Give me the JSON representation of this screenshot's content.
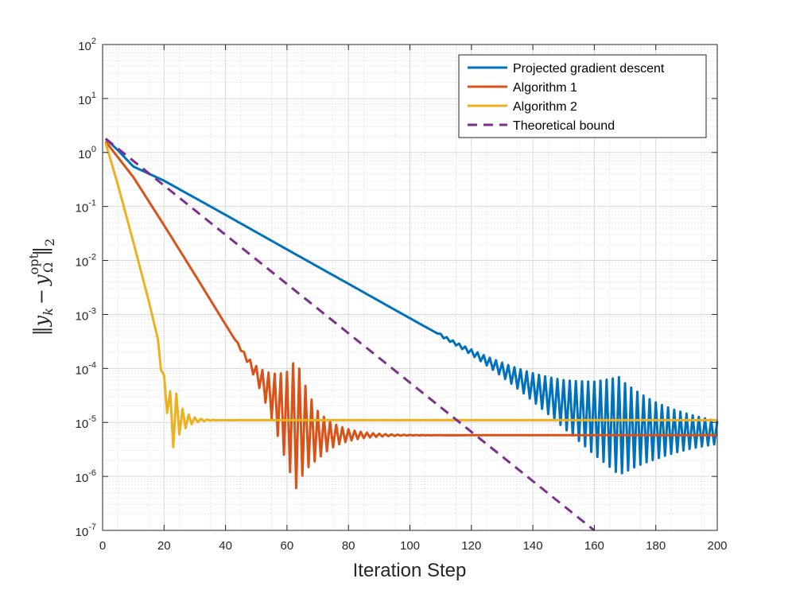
{
  "chart_data": {
    "type": "line",
    "xlabel": "Iteration Step",
    "ylabel": "||y_k − y_Ω^opt||_2",
    "ylabel_parts": {
      "main": "y",
      "sub_k": "k",
      "minus": "−",
      "sup": "opt",
      "sub_omega": "Ω",
      "norm_sub": "2"
    },
    "yscale": "log",
    "xlim": [
      0,
      200
    ],
    "ylim_exp": [
      -7,
      2
    ],
    "x_ticks": [
      0,
      20,
      40,
      60,
      80,
      100,
      120,
      140,
      160,
      180,
      200
    ],
    "y_ticks": [
      {
        "base": "10",
        "exp": "-7"
      },
      {
        "base": "10",
        "exp": "-6"
      },
      {
        "base": "10",
        "exp": "-5"
      },
      {
        "base": "10",
        "exp": "-4"
      },
      {
        "base": "10",
        "exp": "-3"
      },
      {
        "base": "10",
        "exp": "-2"
      },
      {
        "base": "10",
        "exp": "-1"
      },
      {
        "base": "10",
        "exp": "0"
      },
      {
        "base": "10",
        "exp": "1"
      },
      {
        "base": "10",
        "exp": "2"
      }
    ],
    "grid": true,
    "minor_grid": true,
    "legend_position": "top-right",
    "series": [
      {
        "name": "Projected gradient descent",
        "color": "#0072bd",
        "style": "solid",
        "points": [
          [
            1,
            1.8
          ],
          [
            5,
            1.1
          ],
          [
            10,
            0.55
          ],
          [
            20,
            0.3
          ],
          [
            40,
            0.07
          ],
          [
            60,
            0.016
          ],
          [
            80,
            0.0037
          ],
          [
            100,
            0.00085
          ],
          [
            120,
            0.0002
          ],
          [
            140,
            4.5e-05
          ],
          [
            150,
            2.2e-05
          ],
          [
            160,
            1.2e-05
          ],
          [
            170,
            8e-06
          ],
          [
            180,
            7e-06
          ],
          [
            200,
            6.5e-06
          ]
        ],
        "oscillation": {
          "start": 110,
          "amp_start": 0.05,
          "amp_peak": 1.8,
          "peak_at": 168,
          "decay": 0.045,
          "period": 2
        }
      },
      {
        "name": "Algorithm 1",
        "color": "#d95319",
        "style": "solid",
        "points": [
          [
            1,
            1.6
          ],
          [
            10,
            0.35
          ],
          [
            20,
            0.045
          ],
          [
            30,
            0.0055
          ],
          [
            40,
            0.00065
          ],
          [
            50,
            8e-05
          ],
          [
            60,
            1.2e-05
          ],
          [
            70,
            5.8e-06
          ],
          [
            200,
            5.8e-06
          ]
        ],
        "oscillation": {
          "start": 44,
          "amp_start": 0.05,
          "amp_peak": 2.4,
          "peak_at": 63,
          "decay": 0.14,
          "period": 2
        }
      },
      {
        "name": "Algorithm 2",
        "color": "#edb120",
        "style": "solid",
        "points": [
          [
            1,
            1.5
          ],
          [
            5,
            0.25
          ],
          [
            10,
            0.022
          ],
          [
            15,
            0.0018
          ],
          [
            18,
            0.00035
          ],
          [
            20,
            5e-05
          ],
          [
            22,
            1.5e-05
          ],
          [
            26,
            1.1e-05
          ],
          [
            200,
            1.1e-05
          ]
        ],
        "oscillation": {
          "start": 19,
          "amp_start": 0.3,
          "amp_peak": 1.2,
          "peak_at": 23,
          "decay": 0.35,
          "period": 2
        }
      },
      {
        "name": "Theoretical bound",
        "color": "#7e2f8e",
        "style": "dashed",
        "points": [
          [
            1,
            1.8
          ],
          [
            160,
            1e-07
          ]
        ]
      }
    ]
  }
}
